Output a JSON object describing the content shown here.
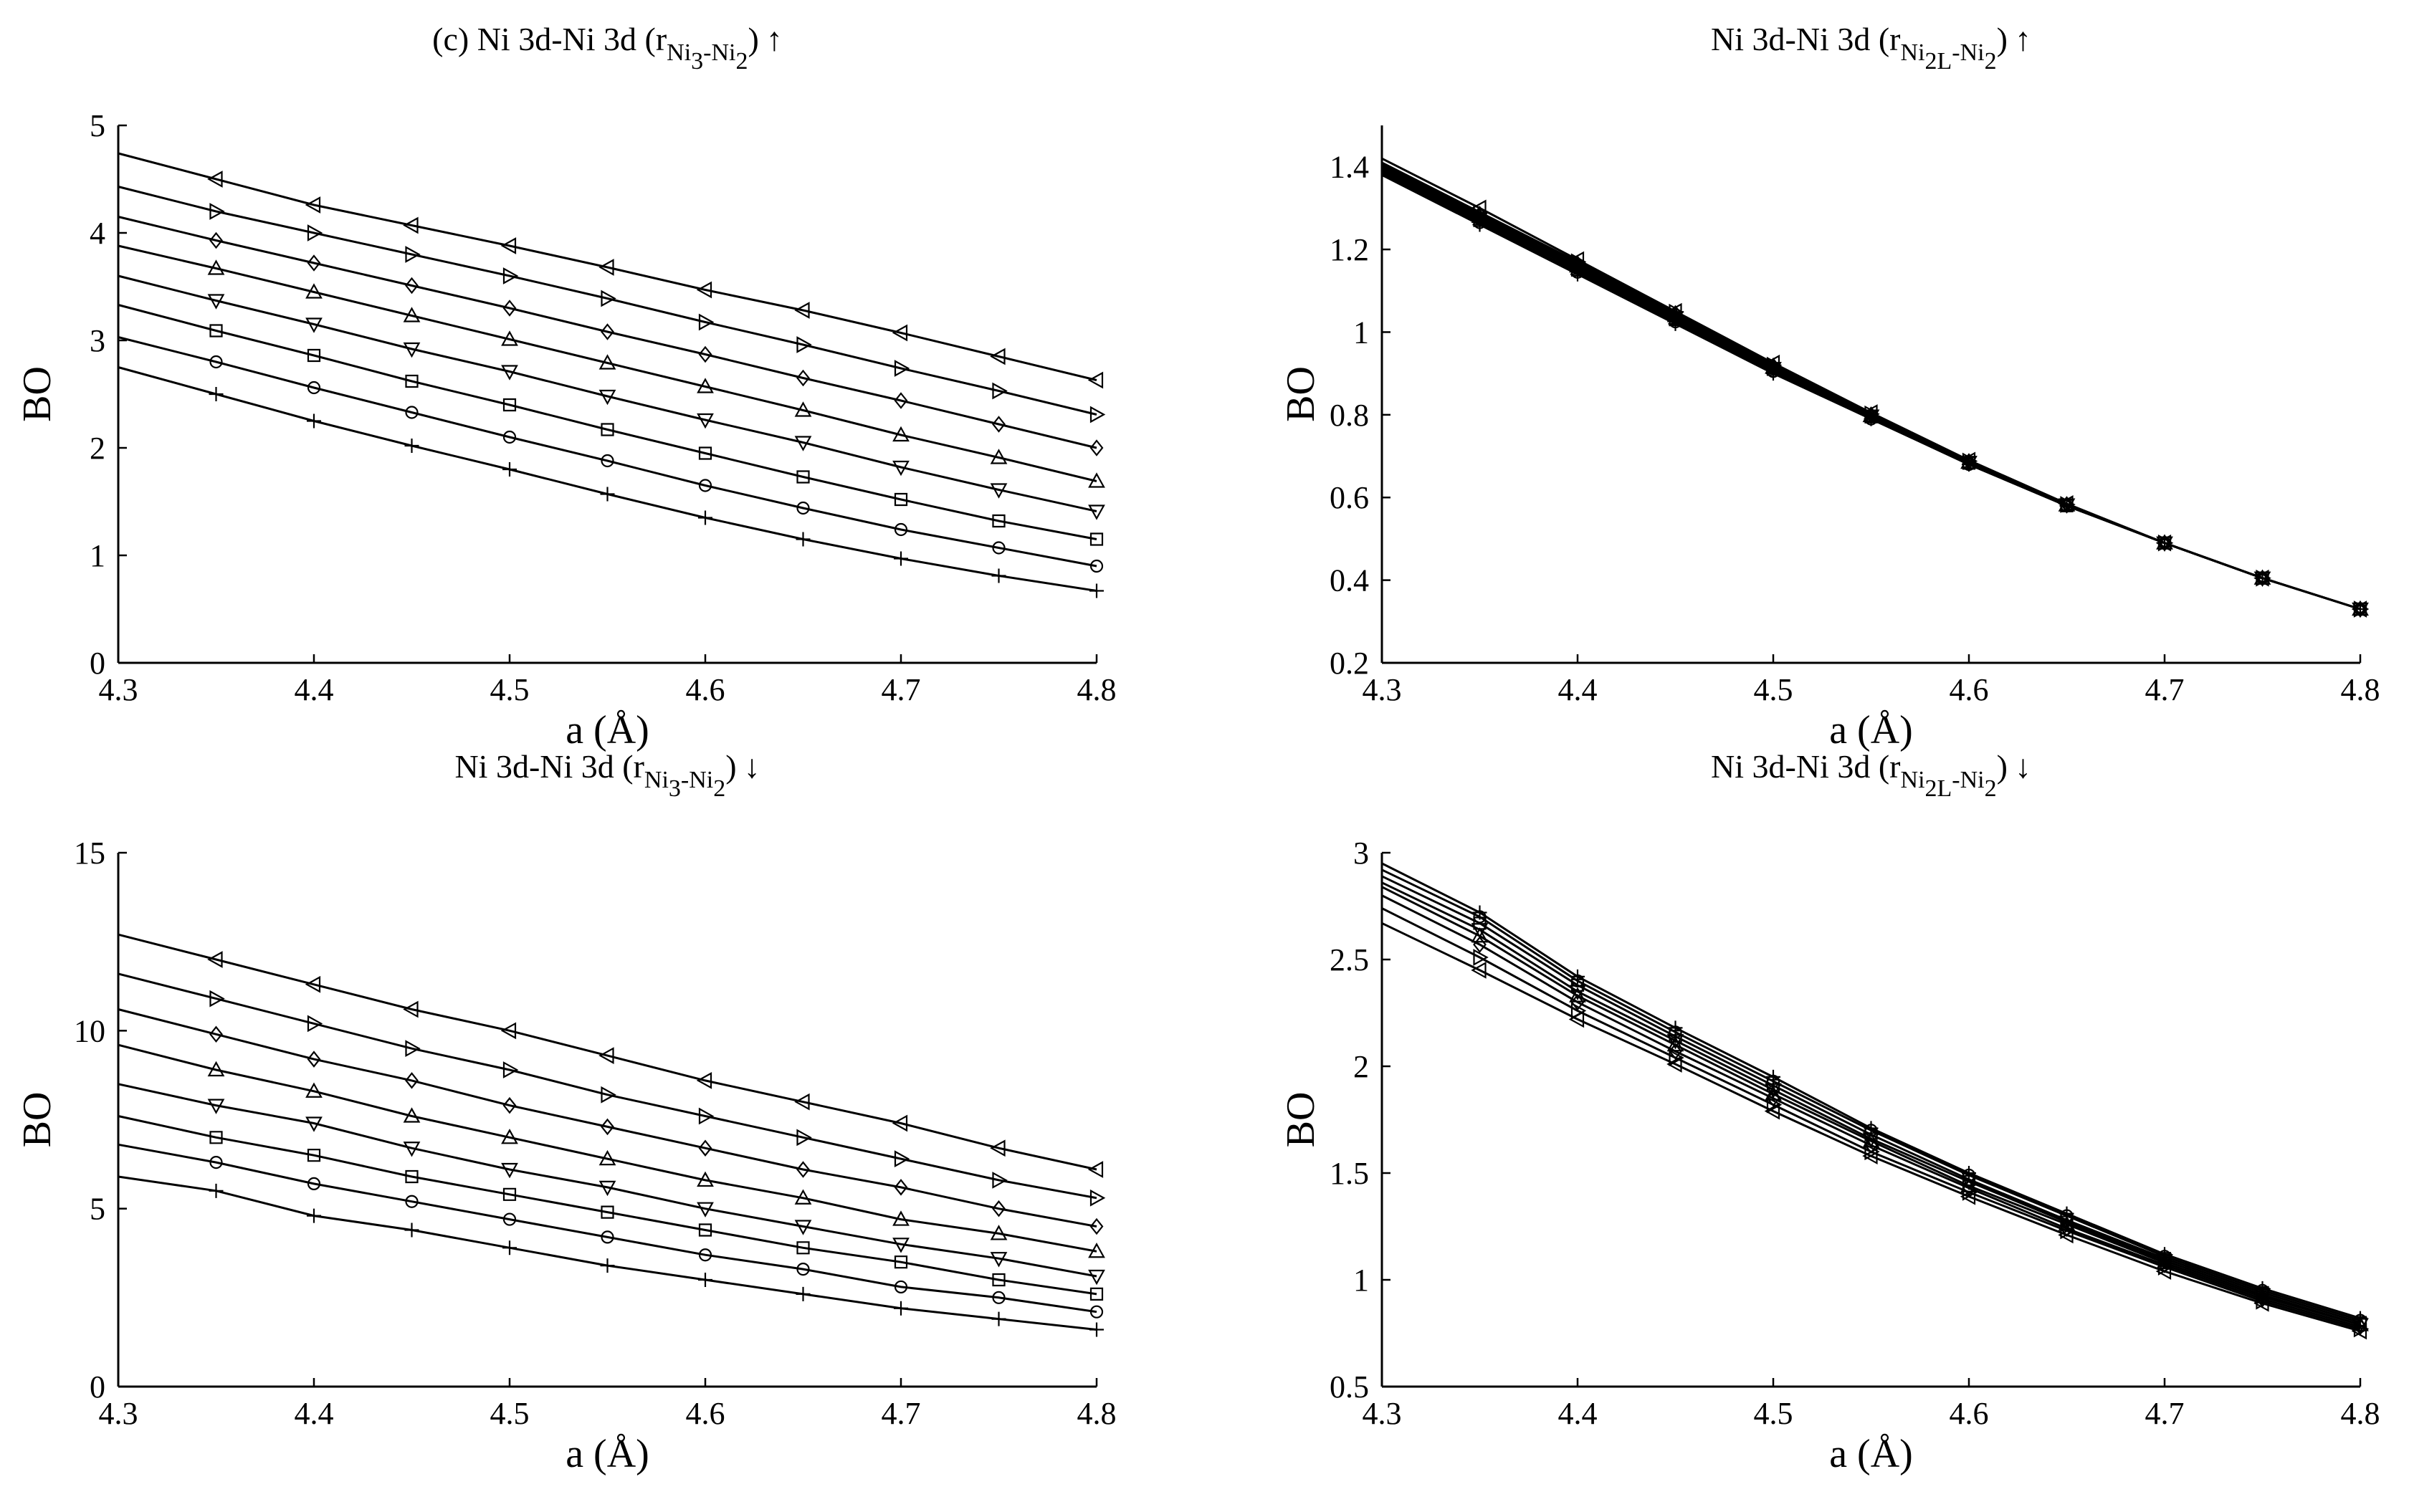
{
  "chart_data": [
    {
      "type": "line",
      "title_parts": [
        "(c) Ni 3d-Ni 3d (r",
        "Ni",
        "3",
        "-Ni",
        "2",
        ")",
        "↑"
      ],
      "xlabel": "a (Å)",
      "ylabel": "BO",
      "xlim": [
        4.3,
        4.8
      ],
      "ylim": [
        0,
        5
      ],
      "xticks": [
        "4.3",
        "4.4",
        "4.5",
        "4.6",
        "4.7",
        "4.8"
      ],
      "yticks": [
        "0",
        "1",
        "2",
        "3",
        "4",
        "5"
      ],
      "grid": false,
      "x": [
        4.3,
        4.35,
        4.4,
        4.45,
        4.5,
        4.55,
        4.6,
        4.65,
        4.7,
        4.75,
        4.8
      ],
      "series": [
        {
          "marker": "plus",
          "values": [
            2.75,
            2.5,
            2.25,
            2.02,
            1.8,
            1.57,
            1.35,
            1.15,
            0.97,
            0.81,
            0.67
          ]
        },
        {
          "marker": "circle",
          "values": [
            3.03,
            2.8,
            2.56,
            2.33,
            2.1,
            1.88,
            1.65,
            1.44,
            1.24,
            1.07,
            0.9
          ]
        },
        {
          "marker": "square",
          "values": [
            3.33,
            3.09,
            2.86,
            2.62,
            2.4,
            2.17,
            1.95,
            1.73,
            1.52,
            1.32,
            1.15
          ]
        },
        {
          "marker": "triangle-down",
          "values": [
            3.6,
            3.37,
            3.15,
            2.92,
            2.71,
            2.48,
            2.26,
            2.05,
            1.82,
            1.61,
            1.41
          ]
        },
        {
          "marker": "triangle-up",
          "values": [
            3.88,
            3.67,
            3.45,
            3.23,
            3.01,
            2.79,
            2.57,
            2.35,
            2.12,
            1.91,
            1.69
          ]
        },
        {
          "marker": "diamond",
          "values": [
            4.15,
            3.93,
            3.72,
            3.51,
            3.3,
            3.08,
            2.87,
            2.65,
            2.44,
            2.22,
            2.0
          ]
        },
        {
          "marker": "triangle-right",
          "values": [
            4.43,
            4.2,
            4.0,
            3.8,
            3.6,
            3.39,
            3.17,
            2.96,
            2.74,
            2.53,
            2.31
          ]
        },
        {
          "marker": "triangle-left",
          "values": [
            4.74,
            4.5,
            4.26,
            4.07,
            3.88,
            3.68,
            3.47,
            3.28,
            3.07,
            2.85,
            2.63
          ]
        }
      ]
    },
    {
      "type": "line",
      "title_parts": [
        "Ni 3d-Ni 3d (r",
        "Ni",
        "2L",
        "-Ni",
        "2",
        ")",
        "↑"
      ],
      "xlabel": "a (Å)",
      "ylabel": "BO",
      "xlim": [
        4.3,
        4.8
      ],
      "ylim": [
        0.2,
        1.5
      ],
      "xticks": [
        "4.3",
        "4.4",
        "4.5",
        "4.6",
        "4.7",
        "4.8"
      ],
      "yticks": [
        "0.2",
        "0.4",
        "0.6",
        "0.8",
        "1",
        "1.2",
        "1.4"
      ],
      "grid": false,
      "x": [
        4.3,
        4.35,
        4.4,
        4.45,
        4.5,
        4.55,
        4.6,
        4.65,
        4.7,
        4.75,
        4.8
      ],
      "series": [
        {
          "marker": "plus",
          "values": [
            1.38,
            1.26,
            1.14,
            1.02,
            0.9,
            0.79,
            0.68,
            0.58,
            0.49,
            0.405,
            0.33
          ]
        },
        {
          "marker": "circle",
          "values": [
            1.385,
            1.265,
            1.145,
            1.025,
            0.905,
            0.79,
            0.68,
            0.58,
            0.49,
            0.405,
            0.33
          ]
        },
        {
          "marker": "square",
          "values": [
            1.39,
            1.27,
            1.15,
            1.03,
            0.91,
            0.795,
            0.683,
            0.58,
            0.49,
            0.405,
            0.33
          ]
        },
        {
          "marker": "triangle-down",
          "values": [
            1.395,
            1.275,
            1.155,
            1.035,
            0.912,
            0.797,
            0.685,
            0.582,
            0.49,
            0.405,
            0.33
          ]
        },
        {
          "marker": "triangle-up",
          "values": [
            1.4,
            1.28,
            1.16,
            1.04,
            0.915,
            0.798,
            0.685,
            0.582,
            0.49,
            0.405,
            0.33
          ]
        },
        {
          "marker": "diamond",
          "values": [
            1.405,
            1.285,
            1.165,
            1.045,
            0.918,
            0.8,
            0.687,
            0.583,
            0.49,
            0.405,
            0.33
          ]
        },
        {
          "marker": "triangle-right",
          "values": [
            1.41,
            1.29,
            1.17,
            1.048,
            0.92,
            0.802,
            0.688,
            0.583,
            0.49,
            0.405,
            0.33
          ]
        },
        {
          "marker": "triangle-left",
          "values": [
            1.42,
            1.3,
            1.175,
            1.05,
            0.925,
            0.805,
            0.69,
            0.585,
            0.49,
            0.405,
            0.33
          ]
        }
      ]
    },
    {
      "type": "line",
      "title_parts": [
        "Ni 3d-Ni 3d (r",
        "Ni",
        "3",
        "-Ni",
        "2",
        ")",
        "↓"
      ],
      "xlabel": "a (Å)",
      "ylabel": "BO",
      "xlim": [
        4.3,
        4.8
      ],
      "ylim": [
        0,
        15
      ],
      "xticks": [
        "4.3",
        "4.4",
        "4.5",
        "4.6",
        "4.7",
        "4.8"
      ],
      "yticks": [
        "0",
        "5",
        "10",
        "15"
      ],
      "grid": false,
      "x": [
        4.3,
        4.35,
        4.4,
        4.45,
        4.5,
        4.55,
        4.6,
        4.65,
        4.7,
        4.75,
        4.8
      ],
      "series": [
        {
          "marker": "plus",
          "values": [
            5.9,
            5.5,
            4.8,
            4.4,
            3.9,
            3.4,
            3.0,
            2.6,
            2.2,
            1.9,
            1.6
          ]
        },
        {
          "marker": "circle",
          "values": [
            6.8,
            6.3,
            5.7,
            5.2,
            4.7,
            4.2,
            3.7,
            3.3,
            2.8,
            2.5,
            2.1
          ]
        },
        {
          "marker": "square",
          "values": [
            7.6,
            7.0,
            6.5,
            5.9,
            5.4,
            4.9,
            4.4,
            3.9,
            3.5,
            3.0,
            2.6
          ]
        },
        {
          "marker": "triangle-down",
          "values": [
            8.5,
            7.9,
            7.4,
            6.7,
            6.1,
            5.6,
            5.0,
            4.5,
            4.0,
            3.6,
            3.1
          ]
        },
        {
          "marker": "triangle-up",
          "values": [
            9.6,
            8.9,
            8.3,
            7.6,
            7.0,
            6.4,
            5.8,
            5.3,
            4.7,
            4.3,
            3.8
          ]
        },
        {
          "marker": "diamond",
          "values": [
            10.6,
            9.9,
            9.2,
            8.6,
            7.9,
            7.3,
            6.7,
            6.1,
            5.6,
            5.0,
            4.5
          ]
        },
        {
          "marker": "triangle-right",
          "values": [
            11.6,
            10.9,
            10.2,
            9.5,
            8.9,
            8.2,
            7.6,
            7.0,
            6.4,
            5.8,
            5.3
          ]
        },
        {
          "marker": "triangle-left",
          "values": [
            12.7,
            12.0,
            11.3,
            10.6,
            10.0,
            9.3,
            8.6,
            8.0,
            7.4,
            6.7,
            6.1
          ]
        }
      ]
    },
    {
      "type": "line",
      "title_parts": [
        "Ni 3d-Ni 3d (r",
        "Ni",
        "2L",
        "-Ni",
        "2",
        ")",
        "↓"
      ],
      "xlabel": "a (Å)",
      "ylabel": "BO",
      "xlim": [
        4.3,
        4.8
      ],
      "ylim": [
        0.5,
        3
      ],
      "xticks": [
        "4.3",
        "4.4",
        "4.5",
        "4.6",
        "4.7",
        "4.8"
      ],
      "yticks": [
        "0.5",
        "1",
        "1.5",
        "2",
        "2.5",
        "3"
      ],
      "grid": false,
      "x": [
        4.3,
        4.35,
        4.4,
        4.45,
        4.5,
        4.55,
        4.6,
        4.65,
        4.7,
        4.75,
        4.8
      ],
      "series": [
        {
          "marker": "plus",
          "values": [
            2.95,
            2.72,
            2.42,
            2.18,
            1.95,
            1.71,
            1.5,
            1.31,
            1.12,
            0.96,
            0.82
          ]
        },
        {
          "marker": "circle",
          "values": [
            2.92,
            2.7,
            2.4,
            2.16,
            1.93,
            1.7,
            1.49,
            1.3,
            1.11,
            0.95,
            0.81
          ]
        },
        {
          "marker": "square",
          "values": [
            2.89,
            2.67,
            2.38,
            2.14,
            1.91,
            1.68,
            1.47,
            1.28,
            1.1,
            0.94,
            0.8
          ]
        },
        {
          "marker": "triangle-down",
          "values": [
            2.86,
            2.64,
            2.35,
            2.12,
            1.89,
            1.66,
            1.46,
            1.27,
            1.09,
            0.93,
            0.79
          ]
        },
        {
          "marker": "triangle-up",
          "values": [
            2.84,
            2.61,
            2.33,
            2.1,
            1.87,
            1.65,
            1.44,
            1.26,
            1.08,
            0.92,
            0.79
          ]
        },
        {
          "marker": "diamond",
          "values": [
            2.8,
            2.57,
            2.3,
            2.07,
            1.85,
            1.63,
            1.43,
            1.24,
            1.07,
            0.91,
            0.78
          ]
        },
        {
          "marker": "triangle-right",
          "values": [
            2.74,
            2.51,
            2.26,
            2.04,
            1.82,
            1.6,
            1.41,
            1.23,
            1.06,
            0.9,
            0.77
          ]
        },
        {
          "marker": "triangle-left",
          "values": [
            2.67,
            2.45,
            2.22,
            2.01,
            1.79,
            1.58,
            1.39,
            1.21,
            1.04,
            0.89,
            0.76
          ]
        }
      ]
    }
  ]
}
